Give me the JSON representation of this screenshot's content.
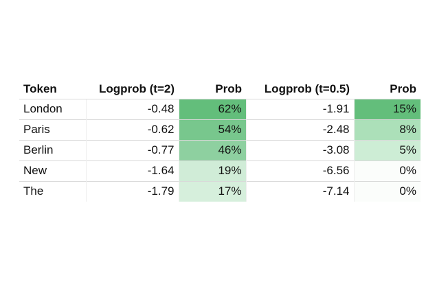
{
  "table": {
    "header": [
      "Token",
      "Logprob (t=2)",
      "Prob",
      "Logprob (t=0.5)",
      "Prob"
    ],
    "rows": [
      [
        "London",
        "-0.48",
        "62%",
        "-1.91",
        "15%"
      ],
      [
        "Paris",
        "-0.62",
        "54%",
        "-2.48",
        "8%"
      ],
      [
        "Berlin",
        "-0.77",
        "46%",
        "-3.08",
        "5%"
      ],
      [
        "New",
        "-1.64",
        "19%",
        "-6.56",
        "0%"
      ],
      [
        "The",
        "-1.79",
        "17%",
        "-7.14",
        "0%"
      ]
    ]
  }
}
